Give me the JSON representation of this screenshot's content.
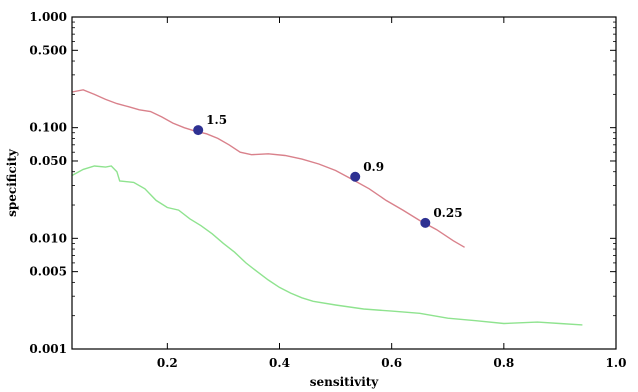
{
  "chart_data": {
    "type": "line",
    "title": "",
    "xlabel": "sensitivity",
    "ylabel": "specificity",
    "xlim": [
      0.03,
      1.0
    ],
    "ylim": [
      0.001,
      1.0
    ],
    "yscale": "log",
    "grid": false,
    "legend": "none",
    "x_ticks": [
      {
        "value": 0.2,
        "label": "0.2"
      },
      {
        "value": 0.4,
        "label": "0.4"
      },
      {
        "value": 0.6,
        "label": "0.6"
      },
      {
        "value": 0.8,
        "label": "0.8"
      },
      {
        "value": 1.0,
        "label": "1.0"
      }
    ],
    "y_ticks": [
      {
        "value": 0.001,
        "label": "0.001"
      },
      {
        "value": 0.005,
        "label": "0.005"
      },
      {
        "value": 0.01,
        "label": "0.010"
      },
      {
        "value": 0.05,
        "label": "0.050"
      },
      {
        "value": 0.1,
        "label": "0.100"
      },
      {
        "value": 0.5,
        "label": "0.500"
      },
      {
        "value": 1.0,
        "label": "1.000"
      }
    ],
    "series": [
      {
        "color": "#d9818b",
        "points": [
          [
            0.03,
            0.21
          ],
          [
            0.05,
            0.22
          ],
          [
            0.07,
            0.2
          ],
          [
            0.09,
            0.18
          ],
          [
            0.11,
            0.165
          ],
          [
            0.13,
            0.155
          ],
          [
            0.15,
            0.145
          ],
          [
            0.17,
            0.14
          ],
          [
            0.19,
            0.125
          ],
          [
            0.21,
            0.11
          ],
          [
            0.23,
            0.1
          ],
          [
            0.25,
            0.093
          ],
          [
            0.27,
            0.088
          ],
          [
            0.29,
            0.08
          ],
          [
            0.31,
            0.07
          ],
          [
            0.33,
            0.06
          ],
          [
            0.35,
            0.057
          ],
          [
            0.38,
            0.058
          ],
          [
            0.41,
            0.056
          ],
          [
            0.44,
            0.052
          ],
          [
            0.47,
            0.047
          ],
          [
            0.5,
            0.041
          ],
          [
            0.53,
            0.034
          ],
          [
            0.56,
            0.028
          ],
          [
            0.59,
            0.022
          ],
          [
            0.62,
            0.018
          ],
          [
            0.65,
            0.0145
          ],
          [
            0.68,
            0.012
          ],
          [
            0.71,
            0.0095
          ],
          [
            0.73,
            0.0083
          ]
        ]
      },
      {
        "color": "#8fe38f",
        "points": [
          [
            0.03,
            0.037
          ],
          [
            0.05,
            0.042
          ],
          [
            0.07,
            0.045
          ],
          [
            0.09,
            0.044
          ],
          [
            0.1,
            0.045
          ],
          [
            0.11,
            0.04
          ],
          [
            0.115,
            0.033
          ],
          [
            0.14,
            0.032
          ],
          [
            0.16,
            0.028
          ],
          [
            0.18,
            0.022
          ],
          [
            0.2,
            0.019
          ],
          [
            0.22,
            0.018
          ],
          [
            0.24,
            0.015
          ],
          [
            0.26,
            0.013
          ],
          [
            0.28,
            0.011
          ],
          [
            0.3,
            0.009
          ],
          [
            0.32,
            0.0075
          ],
          [
            0.34,
            0.006
          ],
          [
            0.36,
            0.005
          ],
          [
            0.38,
            0.0042
          ],
          [
            0.4,
            0.0036
          ],
          [
            0.42,
            0.0032
          ],
          [
            0.44,
            0.0029
          ],
          [
            0.46,
            0.0027
          ],
          [
            0.5,
            0.0025
          ],
          [
            0.55,
            0.0023
          ],
          [
            0.6,
            0.0022
          ],
          [
            0.65,
            0.0021
          ],
          [
            0.7,
            0.0019
          ],
          [
            0.75,
            0.0018
          ],
          [
            0.8,
            0.0017
          ],
          [
            0.86,
            0.00175
          ],
          [
            0.9,
            0.0017
          ],
          [
            0.94,
            0.00165
          ]
        ]
      }
    ],
    "annotations": [
      {
        "x": 0.255,
        "y": 0.095,
        "label": "1.5",
        "marker_color": "#2e3192"
      },
      {
        "x": 0.535,
        "y": 0.036,
        "label": "0.9",
        "marker_color": "#2e3192"
      },
      {
        "x": 0.66,
        "y": 0.0138,
        "label": "0.25",
        "marker_color": "#2e3192"
      }
    ]
  }
}
